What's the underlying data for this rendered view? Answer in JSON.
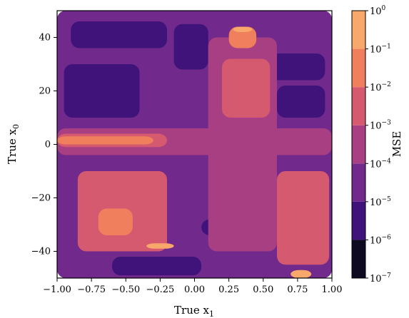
{
  "chart_data": {
    "type": "heatmap",
    "subtype": "filled-contour",
    "title": "",
    "xlabel": "True x",
    "xlabel_sub": "1",
    "ylabel": "True x",
    "ylabel_sub": "0",
    "xlim": [
      -1.0,
      1.0
    ],
    "ylim": [
      -50,
      50
    ],
    "xticks": [
      -1.0,
      -0.75,
      -0.5,
      -0.25,
      0.0,
      0.25,
      0.5,
      0.75,
      1.0
    ],
    "xtick_labels": [
      "−1.00",
      "−0.75",
      "−0.50",
      "−0.25",
      "0.00",
      "0.25",
      "0.50",
      "0.75",
      "1.00"
    ],
    "yticks": [
      -40,
      -20,
      0,
      20,
      40
    ],
    "ytick_labels": [
      "−40",
      "−20",
      "0",
      "20",
      "40"
    ],
    "colorbar": {
      "label": "MSE",
      "scale": "log",
      "levels_exponents": [
        -7,
        -6,
        -5,
        -4,
        -3,
        -2,
        -1,
        0
      ],
      "tick_base": "10",
      "colors": [
        "#0d0a22",
        "#3f137a",
        "#712a8c",
        "#a83f82",
        "#d55a6f",
        "#f07f5d",
        "#f9a86b",
        "#fde2a8"
      ]
    },
    "grid": false,
    "legend": "none",
    "field_levels": [
      {
        "band": -4.5,
        "x_range": [
          -1.0,
          1.0
        ],
        "y_range": [
          -50,
          50
        ]
      },
      {
        "band": -5.5,
        "x_range": [
          -0.9,
          -0.2
        ],
        "y_range": [
          36,
          46
        ]
      },
      {
        "band": -5.5,
        "x_range": [
          -0.95,
          -0.4
        ],
        "y_range": [
          10,
          30
        ]
      },
      {
        "band": -5.5,
        "x_range": [
          -0.15,
          0.1
        ],
        "y_range": [
          28,
          45
        ]
      },
      {
        "band": -5.5,
        "x_range": [
          0.55,
          0.95
        ],
        "y_range": [
          24,
          34
        ]
      },
      {
        "band": -5.5,
        "x_range": [
          0.6,
          0.95
        ],
        "y_range": [
          10,
          22
        ]
      },
      {
        "band": -5.5,
        "x_range": [
          -0.6,
          0.05
        ],
        "y_range": [
          -49,
          -42
        ]
      },
      {
        "band": -5.5,
        "x_range": [
          0.05,
          0.45
        ],
        "y_range": [
          -34,
          -28
        ]
      },
      {
        "band": -3.5,
        "x_range": [
          -1.0,
          1.0
        ],
        "y_range": [
          -4,
          6
        ]
      },
      {
        "band": -3.5,
        "x_range": [
          0.1,
          0.6
        ],
        "y_range": [
          -40,
          40
        ]
      },
      {
        "band": -2.5,
        "x_range": [
          -1.0,
          -0.2
        ],
        "y_range": [
          -1,
          4
        ]
      },
      {
        "band": -2.5,
        "x_range": [
          0.2,
          0.55
        ],
        "y_range": [
          10,
          32
        ]
      },
      {
        "band": -2.5,
        "x_range": [
          -0.85,
          -0.2
        ],
        "y_range": [
          -40,
          -10
        ]
      },
      {
        "band": -2.5,
        "x_range": [
          0.6,
          0.98
        ],
        "y_range": [
          -45,
          -10
        ]
      },
      {
        "band": -1.5,
        "x_range": [
          -1.0,
          -0.3
        ],
        "y_range": [
          0,
          3
        ]
      },
      {
        "band": -1.5,
        "x_range": [
          0.25,
          0.45
        ],
        "y_range": [
          36,
          44
        ]
      },
      {
        "band": -1.5,
        "x_range": [
          -0.7,
          -0.45
        ],
        "y_range": [
          -34,
          -24
        ]
      },
      {
        "band": -0.5,
        "x_range": [
          0.28,
          0.42
        ],
        "y_range": [
          42,
          44
        ]
      },
      {
        "band": -0.5,
        "x_range": [
          -0.35,
          -0.15
        ],
        "y_range": [
          -39,
          -37
        ]
      },
      {
        "band": -0.5,
        "x_range": [
          0.7,
          0.85
        ],
        "y_range": [
          -50,
          -47
        ]
      }
    ]
  }
}
